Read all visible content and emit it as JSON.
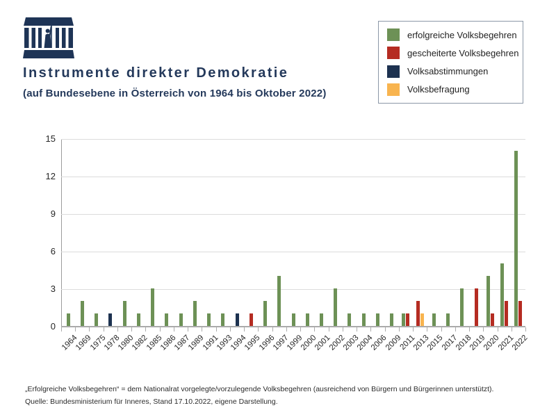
{
  "header": {
    "logo_name": "austrian-parliament-logo"
  },
  "chart_data": {
    "type": "bar",
    "title": "Instrumente direkter Demokratie",
    "subtitle": "(auf Bundesebene in Österreich von 1964 bis Oktober 2022)",
    "ylim": [
      0,
      15
    ],
    "yticks": [
      0,
      3,
      6,
      9,
      12,
      15
    ],
    "grid": true,
    "legend_position": "top-right",
    "categories": [
      "1964",
      "1969",
      "1975",
      "1978",
      "1980",
      "1982",
      "1985",
      "1986",
      "1987",
      "1989",
      "1991",
      "1993",
      "1994",
      "1995",
      "1996",
      "1997",
      "1999",
      "2000",
      "2001",
      "2002",
      "2003",
      "2004",
      "2006",
      "2009",
      "2011",
      "2013",
      "2015",
      "2017",
      "2018",
      "2019",
      "2020",
      "2021",
      "2022"
    ],
    "series": [
      {
        "name": "erfolgreiche Volksbegehren",
        "color": "#6d9156",
        "values": [
          1,
          2,
          1,
          0,
          2,
          1,
          3,
          1,
          1,
          2,
          1,
          1,
          0,
          0,
          2,
          4,
          1,
          1,
          1,
          3,
          1,
          1,
          1,
          1,
          1,
          0,
          1,
          1,
          3,
          0,
          4,
          5,
          14
        ]
      },
      {
        "name": "gescheiterte Volksbegehren",
        "color": "#b52c22",
        "values": [
          0,
          0,
          0,
          0,
          0,
          0,
          0,
          0,
          0,
          0,
          0,
          0,
          0,
          1,
          0,
          0,
          0,
          0,
          0,
          0,
          0,
          0,
          0,
          0,
          1,
          2,
          0,
          0,
          0,
          3,
          1,
          2,
          2
        ]
      },
      {
        "name": "Volksabstimmungen",
        "color": "#1d3250",
        "values": [
          0,
          0,
          0,
          1,
          0,
          0,
          0,
          0,
          0,
          0,
          0,
          0,
          1,
          0,
          0,
          0,
          0,
          0,
          0,
          0,
          0,
          0,
          0,
          0,
          0,
          0,
          0,
          0,
          0,
          0,
          0,
          0,
          0
        ]
      },
      {
        "name": "Volksbefragung",
        "color": "#f8b44f",
        "values": [
          0,
          0,
          0,
          0,
          0,
          0,
          0,
          0,
          0,
          0,
          0,
          0,
          0,
          0,
          0,
          0,
          0,
          0,
          0,
          0,
          0,
          0,
          0,
          0,
          0,
          1,
          0,
          0,
          0,
          0,
          0,
          0,
          0
        ]
      }
    ]
  },
  "footer": {
    "note": "„Erfolgreiche Volksbegehren“ = dem Nationalrat vorgelegte/vorzulegende Volksbegehren (ausreichend von Bürgern und Bürgerinnen unterstützt).",
    "source": "Quelle: Bundesministerium für Inneres, Stand 17.10.2022, eigene Darstellung."
  }
}
